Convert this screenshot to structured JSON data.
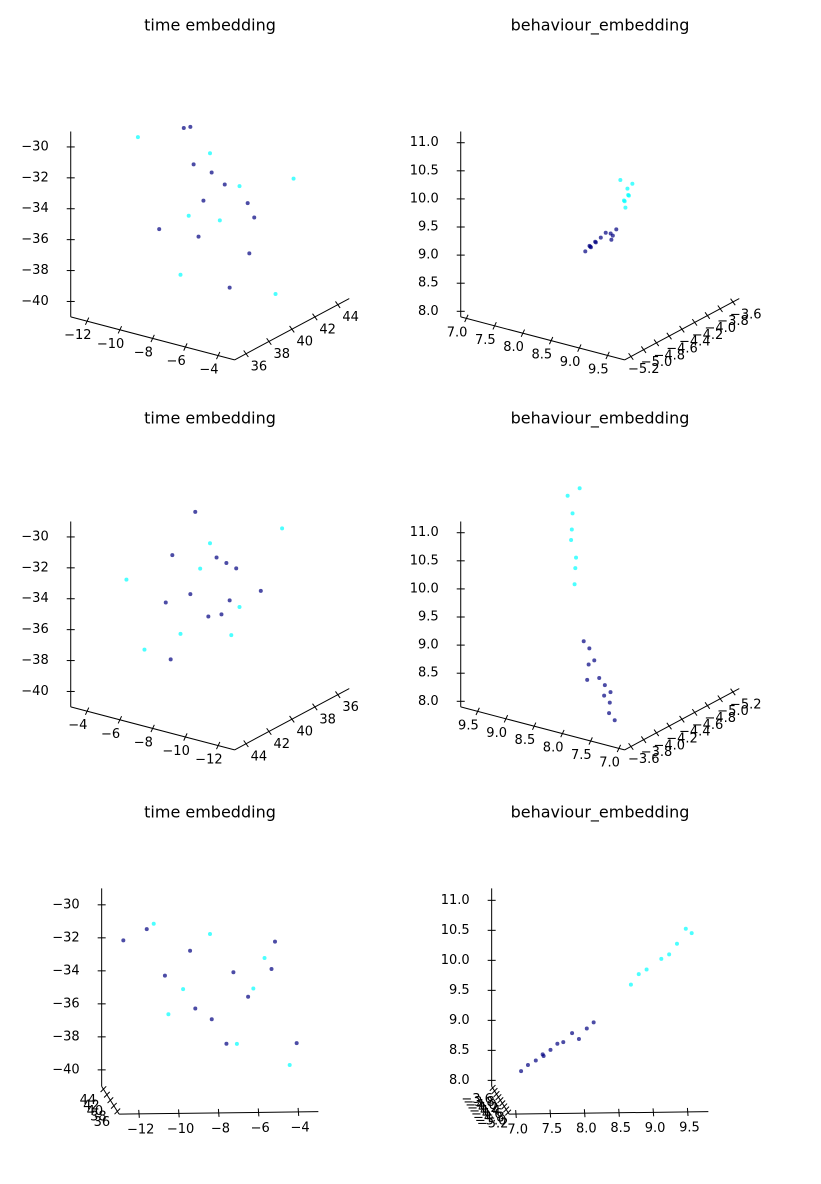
{
  "chart_data": [
    {
      "type": "scatter3d",
      "title": "time embedding",
      "xlim": [
        -13,
        -3
      ],
      "xticks": [
        {
          "value": -4,
          "label": "−4"
        },
        {
          "value": -6,
          "label": "−6"
        },
        {
          "value": -8,
          "label": "−8"
        },
        {
          "value": -10,
          "label": "−10"
        },
        {
          "value": -12,
          "label": "−12"
        }
      ],
      "ylim": [
        35,
        45
      ],
      "yticks": [
        36,
        38,
        40,
        42,
        44
      ],
      "zlim": [
        -41,
        -29
      ],
      "zticks": [
        {
          "value": -30,
          "label": "−30"
        },
        {
          "value": -32,
          "label": "−32"
        },
        {
          "value": -34,
          "label": "−34"
        },
        {
          "value": -36,
          "label": "−36"
        },
        {
          "value": -38,
          "label": "−38"
        },
        {
          "value": -40,
          "label": "−40"
        }
      ],
      "series": [
        {
          "color": "#000080",
          "x": [
            -5,
            -7,
            -9,
            -11,
            -6,
            -8,
            -4,
            -10,
            -7,
            -5,
            -9,
            -12
          ],
          "y": [
            37,
            38,
            40,
            42,
            41,
            39,
            36,
            43,
            42,
            39,
            37,
            44
          ],
          "z": [
            -31,
            -33,
            -32,
            -31,
            -35,
            -36,
            -37,
            -34,
            -38,
            -33,
            -35,
            -32
          ]
        },
        {
          "color": "#00ffff",
          "x": [
            -6,
            -8,
            -4,
            -10,
            -5,
            -11,
            -7,
            -9
          ],
          "y": [
            38,
            40,
            40,
            41,
            43,
            38,
            36,
            44
          ],
          "z": [
            -34,
            -31,
            -39,
            -36,
            -33,
            -30,
            -37,
            -35
          ]
        }
      ]
    },
    {
      "type": "scatter3d",
      "title": "behaviour_embedding",
      "xlim": [
        6.9,
        9.8
      ],
      "xticks": [
        {
          "value": 7,
          "label": "7.0"
        },
        7.5,
        {
          "value": 8,
          "label": "8.0"
        },
        8.5,
        {
          "value": 9,
          "label": "9.0"
        },
        9.5
      ],
      "ylim": [
        -5.3,
        -3.5
      ],
      "yticks": [
        {
          "value": -3.6,
          "label": "−3.6"
        },
        {
          "value": -3.8,
          "label": "−3.8"
        },
        {
          "value": -4.0,
          "label": "−4.0"
        },
        {
          "value": -4.2,
          "label": "−4.2"
        },
        {
          "value": -4.4,
          "label": "−4.4"
        },
        {
          "value": -4.6,
          "label": "−4.6"
        },
        {
          "value": -4.8,
          "label": "−4.8"
        },
        {
          "value": -5.0,
          "label": "−5.0"
        },
        {
          "value": -5.2,
          "label": "−5.2"
        }
      ],
      "zlim": [
        7.9,
        11.2
      ],
      "zticks": [
        {
          "value": 8,
          "label": "8.0"
        },
        8.5,
        {
          "value": 9,
          "label": "9.0"
        },
        9.5,
        {
          "value": 10,
          "label": "10.0"
        },
        10.5,
        {
          "value": 11,
          "label": "11.0"
        }
      ],
      "series": [
        {
          "color": "#000080",
          "x": [
            7.4,
            7.6,
            7.8,
            8.0,
            8.2,
            7.7,
            7.5,
            7.9,
            8.1,
            7.3,
            8.3,
            7.6
          ],
          "y": [
            -3.7,
            -3.8,
            -3.9,
            -4.0,
            -4.1,
            -3.9,
            -3.8,
            -3.8,
            -4.0,
            -3.7,
            -4.1,
            -3.9
          ],
          "z": [
            8.3,
            8.5,
            8.7,
            8.9,
            9.0,
            8.6,
            8.4,
            8.7,
            8.8,
            8.2,
            9.1,
            8.5
          ]
        },
        {
          "color": "#00ffff",
          "x": [
            8.8,
            9.0,
            9.2,
            9.4,
            9.6,
            8.9,
            9.3,
            9.5
          ],
          "y": [
            -4.4,
            -4.6,
            -4.7,
            -4.9,
            -5.0,
            -4.5,
            -4.8,
            -5.1
          ],
          "z": [
            9.8,
            10.1,
            10.3,
            10.6,
            10.8,
            10.0,
            10.4,
            10.9
          ]
        }
      ]
    },
    {
      "type": "scatter3d",
      "title": "time embedding",
      "xlim": [
        -13,
        -3
      ],
      "xticks": [
        {
          "value": -4,
          "label": "−4"
        },
        {
          "value": -6,
          "label": "−6"
        },
        {
          "value": -8,
          "label": "−8"
        },
        {
          "value": -10,
          "label": "−10"
        },
        {
          "value": -12,
          "label": "−12"
        }
      ],
      "ylim": [
        35,
        45
      ],
      "yticks": [
        36,
        38,
        40,
        42,
        44
      ],
      "zlim": [
        -41,
        -29
      ],
      "zticks": [
        {
          "value": -30,
          "label": "−30"
        },
        {
          "value": -32,
          "label": "−32"
        },
        {
          "value": -34,
          "label": "−34"
        },
        {
          "value": -36,
          "label": "−36"
        },
        {
          "value": -38,
          "label": "−38"
        },
        {
          "value": -40,
          "label": "−40"
        }
      ],
      "series": [
        {
          "color": "#000080",
          "x": [
            -5,
            -7,
            -9,
            -11,
            -6,
            -8,
            -4,
            -10,
            -7,
            -5,
            -9,
            -12
          ],
          "y": [
            37,
            38,
            40,
            42,
            41,
            39,
            36,
            43,
            42,
            39,
            37,
            44
          ],
          "z": [
            -31,
            -33,
            -32,
            -31,
            -35,
            -36,
            -37,
            -34,
            -38,
            -33,
            -35,
            -32
          ]
        },
        {
          "color": "#00ffff",
          "x": [
            -6,
            -8,
            -4,
            -10,
            -5,
            -11,
            -7,
            -9
          ],
          "y": [
            38,
            40,
            40,
            41,
            43,
            38,
            36,
            44
          ],
          "z": [
            -34,
            -31,
            -39,
            -36,
            -33,
            -30,
            -37,
            -35
          ]
        }
      ]
    },
    {
      "type": "scatter3d",
      "title": "behaviour_embedding",
      "xlim": [
        6.9,
        9.8
      ],
      "xticks": [
        {
          "value": 7,
          "label": "7.0"
        },
        7.5,
        {
          "value": 8,
          "label": "8.0"
        },
        8.5,
        {
          "value": 9,
          "label": "9.0"
        },
        9.5
      ],
      "ylim": [
        -5.3,
        -3.5
      ],
      "yticks": [
        {
          "value": -3.6,
          "label": "−3.6"
        },
        {
          "value": -3.8,
          "label": "−3.8"
        },
        {
          "value": -4.0,
          "label": "−4.0"
        },
        {
          "value": -4.2,
          "label": "−4.2"
        },
        {
          "value": -4.4,
          "label": "−4.4"
        },
        {
          "value": -4.6,
          "label": "−4.6"
        },
        {
          "value": -4.8,
          "label": "−4.8"
        },
        {
          "value": -5.0,
          "label": "−5.0"
        },
        {
          "value": -5.2,
          "label": "−5.2"
        }
      ],
      "zlim": [
        7.9,
        11.2
      ],
      "zticks": [
        {
          "value": 8,
          "label": "8.0"
        },
        8.5,
        {
          "value": 9,
          "label": "9.0"
        },
        9.5,
        {
          "value": 10,
          "label": "10.0"
        },
        10.5,
        {
          "value": 11,
          "label": "11.0"
        }
      ],
      "series": [
        {
          "color": "#000080",
          "x": [
            7.4,
            7.6,
            7.8,
            8.0,
            8.2,
            7.7,
            7.5,
            7.9,
            8.1,
            7.3,
            8.3,
            7.6
          ],
          "y": [
            -3.7,
            -3.8,
            -3.9,
            -4.0,
            -4.1,
            -3.9,
            -3.8,
            -3.8,
            -4.0,
            -3.7,
            -4.1,
            -3.9
          ],
          "z": [
            8.3,
            8.5,
            8.7,
            8.9,
            9.0,
            8.6,
            8.4,
            8.7,
            8.8,
            8.2,
            9.1,
            8.5
          ]
        },
        {
          "color": "#00ffff",
          "x": [
            8.8,
            9.0,
            9.2,
            9.4,
            9.6,
            8.9,
            9.3,
            9.5
          ],
          "y": [
            -4.4,
            -4.6,
            -4.7,
            -4.9,
            -5.0,
            -4.5,
            -4.8,
            -5.1
          ],
          "z": [
            9.8,
            10.1,
            10.3,
            10.6,
            10.8,
            10.0,
            10.4,
            10.9
          ]
        }
      ]
    },
    {
      "type": "scatter3d",
      "title": "time embedding",
      "xlim": [
        -13,
        -3
      ],
      "xticks": [
        {
          "value": -4,
          "label": "−4"
        },
        {
          "value": -6,
          "label": "−6"
        },
        {
          "value": -8,
          "label": "−8"
        },
        {
          "value": -10,
          "label": "−10"
        },
        {
          "value": -12,
          "label": "−12"
        }
      ],
      "ylim": [
        35,
        45
      ],
      "yticks": [
        36,
        38,
        40,
        42,
        44
      ],
      "zlim": [
        -41,
        -29
      ],
      "zticks": [
        {
          "value": -30,
          "label": "−30"
        },
        {
          "value": -32,
          "label": "−32"
        },
        {
          "value": -34,
          "label": "−34"
        },
        {
          "value": -36,
          "label": "−36"
        },
        {
          "value": -38,
          "label": "−38"
        },
        {
          "value": -40,
          "label": "−40"
        }
      ],
      "series": [
        {
          "color": "#000080",
          "x": [
            -5,
            -7,
            -9,
            -11,
            -6,
            -8,
            -4,
            -10,
            -7,
            -5,
            -9,
            -12
          ],
          "y": [
            37,
            38,
            40,
            42,
            41,
            39,
            36,
            43,
            42,
            39,
            37,
            44
          ],
          "z": [
            -31,
            -33,
            -32,
            -31,
            -35,
            -36,
            -37,
            -34,
            -38,
            -33,
            -35,
            -32
          ]
        },
        {
          "color": "#00ffff",
          "x": [
            -6,
            -8,
            -4,
            -10,
            -5,
            -11,
            -7,
            -9
          ],
          "y": [
            38,
            40,
            40,
            41,
            43,
            38,
            36,
            44
          ],
          "z": [
            -34,
            -31,
            -39,
            -36,
            -33,
            -30,
            -37,
            -35
          ]
        }
      ]
    },
    {
      "type": "scatter3d",
      "title": "behaviour_embedding",
      "xlim": [
        6.9,
        9.8
      ],
      "xticks": [
        {
          "value": 7,
          "label": "7.0"
        },
        7.5,
        {
          "value": 8,
          "label": "8.0"
        },
        8.5,
        {
          "value": 9,
          "label": "9.0"
        },
        9.5
      ],
      "ylim": [
        -5.3,
        -3.5
      ],
      "yticks": [
        {
          "value": -3.6,
          "label": "−3.6"
        },
        {
          "value": -3.8,
          "label": "−3.8"
        },
        {
          "value": -4.0,
          "label": "−4.0"
        },
        {
          "value": -4.2,
          "label": "−4.2"
        },
        {
          "value": -4.4,
          "label": "−4.4"
        },
        {
          "value": -4.6,
          "label": "−4.6"
        },
        {
          "value": -4.8,
          "label": "−4.8"
        },
        {
          "value": -5.0,
          "label": "−5.0"
        },
        {
          "value": -5.2,
          "label": "−5.2"
        }
      ],
      "zlim": [
        7.9,
        11.2
      ],
      "zticks": [
        {
          "value": 8,
          "label": "8.0"
        },
        8.5,
        {
          "value": 9,
          "label": "9.0"
        },
        9.5,
        {
          "value": 10,
          "label": "10.0"
        },
        10.5,
        {
          "value": 11,
          "label": "11.0"
        }
      ],
      "series": [
        {
          "color": "#000080",
          "x": [
            7.4,
            7.6,
            7.8,
            8.0,
            8.2,
            7.7,
            7.5,
            7.9,
            8.1,
            7.3,
            8.3,
            7.6
          ],
          "y": [
            -3.7,
            -3.8,
            -3.9,
            -4.0,
            -4.1,
            -3.9,
            -3.8,
            -3.8,
            -4.0,
            -3.7,
            -4.1,
            -3.9
          ],
          "z": [
            8.3,
            8.5,
            8.7,
            8.9,
            9.0,
            8.6,
            8.4,
            8.7,
            8.8,
            8.2,
            9.1,
            8.5
          ]
        },
        {
          "color": "#00ffff",
          "x": [
            8.8,
            9.0,
            9.2,
            9.4,
            9.6,
            8.9,
            9.3,
            9.5
          ],
          "y": [
            -4.4,
            -4.6,
            -4.7,
            -4.9,
            -5.0,
            -4.5,
            -4.8,
            -5.1
          ],
          "z": [
            9.8,
            10.1,
            10.3,
            10.6,
            10.8,
            10.0,
            10.4,
            10.9
          ]
        }
      ]
    }
  ]
}
